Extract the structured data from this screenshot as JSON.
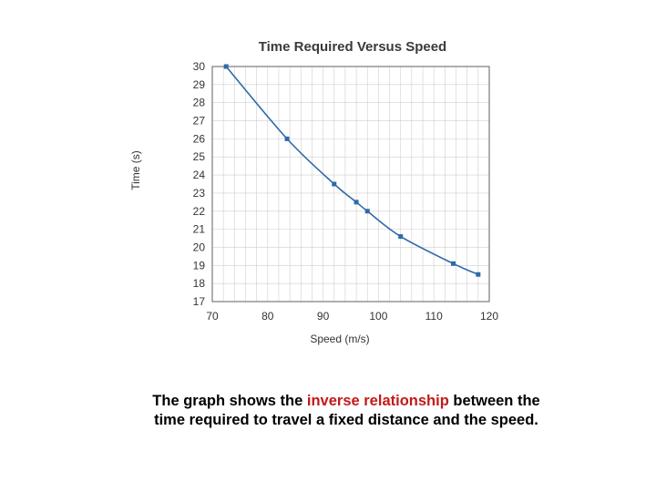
{
  "chart_data": {
    "type": "line",
    "title": "Time Required Versus Speed",
    "xlabel": "Speed (m/s)",
    "ylabel": "Time (s)",
    "xlim": [
      70,
      120
    ],
    "ylim": [
      17,
      30
    ],
    "x_ticks": [
      70,
      80,
      90,
      100,
      110,
      120
    ],
    "y_ticks": [
      17,
      18,
      19,
      20,
      21,
      22,
      23,
      24,
      25,
      26,
      27,
      28,
      29,
      30
    ],
    "grid": true,
    "series": [
      {
        "color": "#2f6aa8",
        "points": [
          {
            "x": 72.5,
            "y": 30.0
          },
          {
            "x": 83.5,
            "y": 26.0
          },
          {
            "x": 92.0,
            "y": 23.5
          },
          {
            "x": 96.0,
            "y": 22.5
          },
          {
            "x": 98.0,
            "y": 22.0
          },
          {
            "x": 104.0,
            "y": 20.6
          },
          {
            "x": 113.5,
            "y": 19.1
          },
          {
            "x": 118.0,
            "y": 18.5
          }
        ]
      }
    ]
  },
  "caption": {
    "before": "The graph shows the ",
    "highlight": "inverse relationship",
    "after": " between the time required to travel a fixed distance and the speed.",
    "highlight_color": "#c21a1a"
  }
}
